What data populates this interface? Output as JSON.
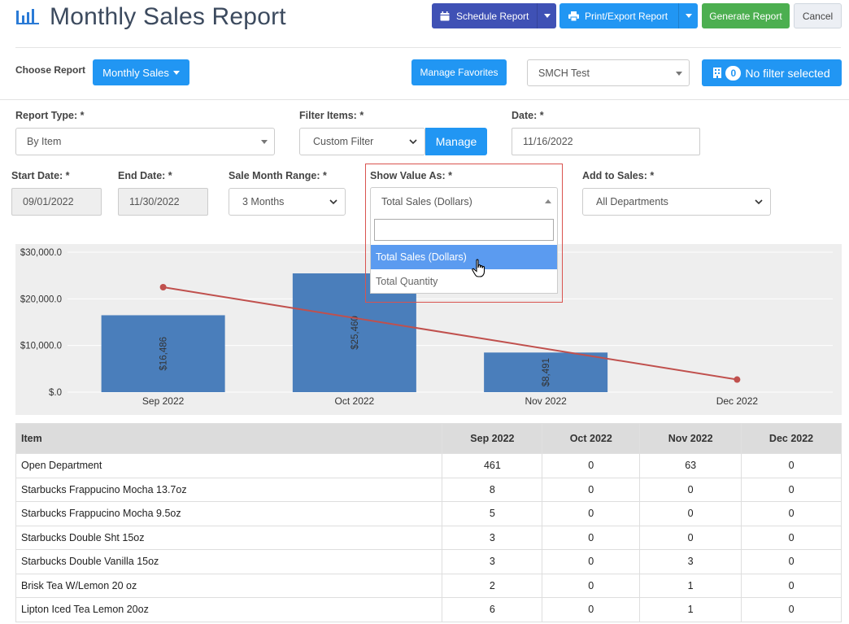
{
  "header": {
    "title": "Monthly Sales Report",
    "schedule_label": "Schedule Report",
    "print_label": "Print/Export Report",
    "generate_label": "Generate Report",
    "cancel_label": "Cancel"
  },
  "toolbar": {
    "choose_label": "Choose Report",
    "report_select": "Monthly Sales",
    "favorites_label": "Manage Favorites",
    "store_select": "SMCH Test",
    "filter_count": "0",
    "filter_label": "No filter selected"
  },
  "form": {
    "report_type_label": "Report Type: *",
    "report_type_value": "By Item",
    "filter_items_label": "Filter Items: *",
    "filter_items_value": "Custom Filter",
    "manage_label": "Manage",
    "date_label": "Date: *",
    "date_value": "11/16/2022",
    "start_date_label": "Start Date: *",
    "start_date_value": "09/01/2022",
    "end_date_label": "End Date: *",
    "end_date_value": "11/30/2022",
    "month_range_label": "Sale Month Range: *",
    "month_range_value": "3 Months",
    "show_value_label": "Show Value As: *",
    "show_value_value": "Total Sales (Dollars)",
    "show_value_options": [
      "Total Sales (Dollars)",
      "Total Quantity"
    ],
    "add_to_sales_label": "Add to Sales: *",
    "add_to_sales_value": "All Departments"
  },
  "colors": {
    "primary": "#2196f3",
    "indigo": "#3f51b5",
    "success": "#4caf50",
    "bar": "#4a7ebb",
    "line": "#c0504d",
    "highlight": "#5b9bf0"
  },
  "chart_data": {
    "type": "bar",
    "categories": [
      "Sep 2022",
      "Oct 2022",
      "Nov 2022",
      "Dec 2022"
    ],
    "series": [
      {
        "type": "bar",
        "values": [
          16486,
          25460,
          8491,
          null
        ],
        "labels": [
          "$16,486",
          "$25,460",
          "$8,491",
          ""
        ]
      },
      {
        "type": "line",
        "values": [
          22500,
          null,
          null,
          2700
        ]
      }
    ],
    "yticks": [
      "$.0",
      "$10,000.0",
      "$20,000.0",
      "$30,000.0"
    ],
    "ylim": [
      0,
      30000
    ],
    "grid": true
  },
  "table": {
    "columns": [
      "Item",
      "Sep 2022",
      "Oct 2022",
      "Nov 2022",
      "Dec 2022"
    ],
    "rows": [
      [
        "Open Department",
        "461",
        "0",
        "63",
        "0"
      ],
      [
        "Starbucks Frappucino Mocha 13.7oz",
        "8",
        "0",
        "0",
        "0"
      ],
      [
        "Starbucks Frappucino Mocha 9.5oz",
        "5",
        "0",
        "0",
        "0"
      ],
      [
        "Starbucks Double Sht 15oz",
        "3",
        "0",
        "0",
        "0"
      ],
      [
        "Starbucks Double Vanilla 15oz",
        "3",
        "0",
        "3",
        "0"
      ],
      [
        "Brisk Tea W/Lemon 20 oz",
        "2",
        "0",
        "1",
        "0"
      ],
      [
        "Lipton Iced Tea Lemon 20oz",
        "6",
        "0",
        "1",
        "0"
      ]
    ]
  }
}
